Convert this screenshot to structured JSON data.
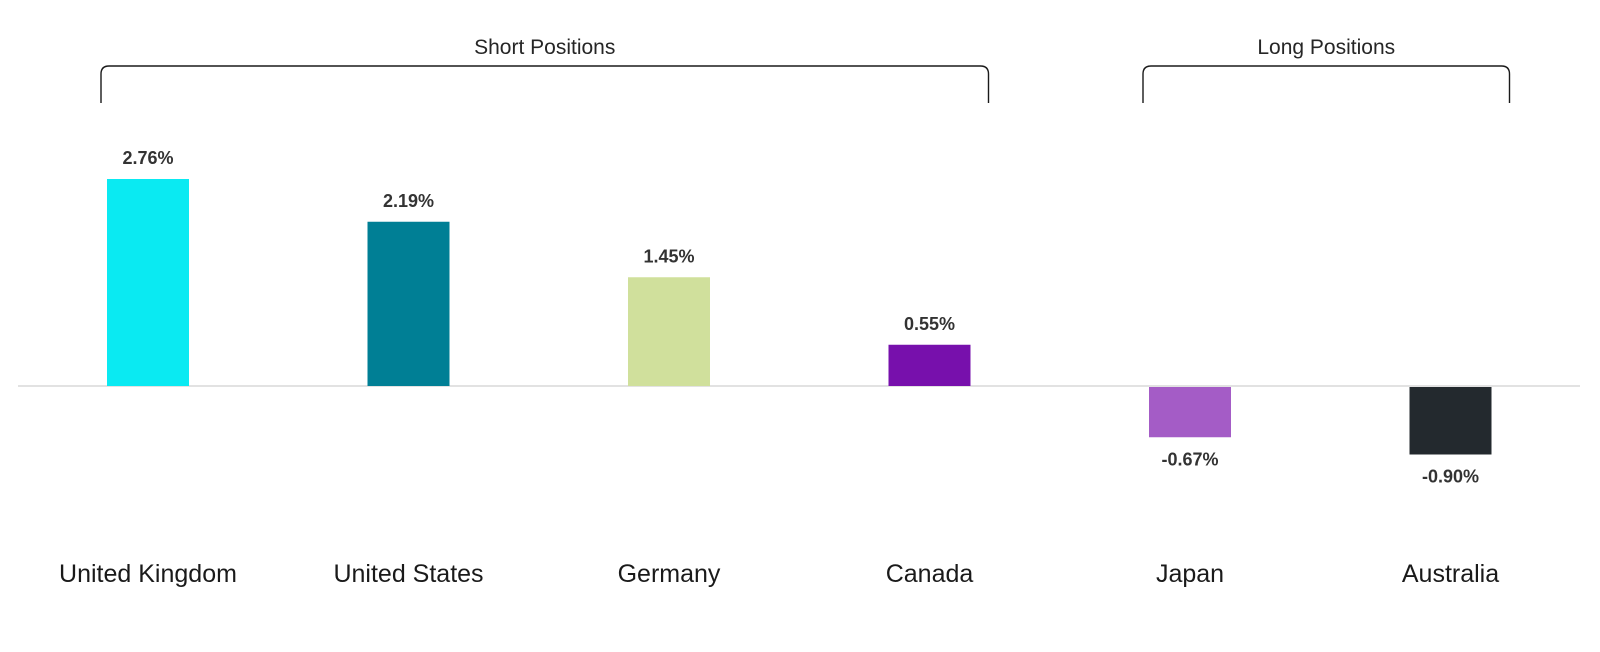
{
  "chart_data": {
    "type": "bar",
    "categories": [
      "United Kingdom",
      "United States",
      "Germany",
      "Canada",
      "Japan",
      "Australia"
    ],
    "values": [
      2.76,
      2.19,
      1.45,
      0.55,
      -0.67,
      -0.9
    ],
    "value_labels": [
      "2.76%",
      "2.19%",
      "1.45%",
      "0.55%",
      "-0.67%",
      "-0.90%"
    ],
    "colors": [
      "#0aeaf2",
      "#007f95",
      "#d0e09c",
      "#7710ac",
      "#a45cc6",
      "#23292e"
    ],
    "groups": [
      {
        "label": "Short Positions",
        "categories": [
          "United Kingdom",
          "United States",
          "Germany",
          "Canada"
        ]
      },
      {
        "label": "Long Positions",
        "categories": [
          "Japan",
          "Australia"
        ]
      }
    ],
    "title": "",
    "xlabel": "",
    "ylabel": "",
    "ylim": [
      -2.5,
      2.76
    ],
    "grid": false,
    "legend": "none",
    "baseline_color": "#d9d9d9"
  }
}
